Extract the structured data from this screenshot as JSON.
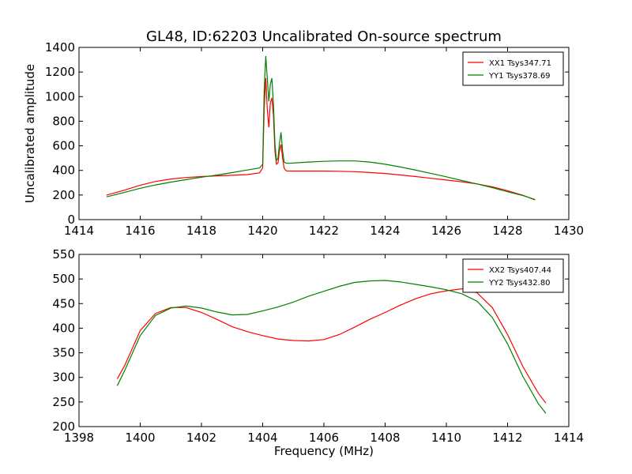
{
  "chart_data": [
    {
      "type": "line",
      "title": "GL48, ID:62203 Uncalibrated On-source spectrum",
      "xlabel": "",
      "ylabel": "Uncalibrated amplitude",
      "xlim": [
        1414,
        1430
      ],
      "ylim": [
        0,
        1400
      ],
      "xticks": [
        "1414",
        "1416",
        "1418",
        "1420",
        "1422",
        "1424",
        "1426",
        "1428",
        "1430"
      ],
      "yticks": [
        "0",
        "200",
        "400",
        "600",
        "800",
        "1000",
        "1200",
        "1400"
      ],
      "legend_position": "top-right",
      "series": [
        {
          "name": "XX1 Tsys347.71",
          "color": "#ff0000",
          "x": [
            1414.9,
            1415.5,
            1416.0,
            1416.5,
            1417.0,
            1417.5,
            1418.0,
            1418.5,
            1419.0,
            1419.5,
            1419.9,
            1420.0,
            1420.05,
            1420.1,
            1420.15,
            1420.2,
            1420.25,
            1420.3,
            1420.35,
            1420.4,
            1420.45,
            1420.5,
            1420.55,
            1420.6,
            1420.65,
            1420.7,
            1420.75,
            1420.8,
            1421.0,
            1421.5,
            1422.0,
            1422.5,
            1423.0,
            1423.5,
            1424.0,
            1424.5,
            1425.0,
            1425.5,
            1426.0,
            1426.5,
            1427.0,
            1427.5,
            1428.0,
            1428.5,
            1428.9
          ],
          "y": [
            200,
            240,
            280,
            310,
            330,
            342,
            350,
            356,
            360,
            366,
            380,
            420,
            900,
            1150,
            900,
            750,
            950,
            990,
            850,
            560,
            450,
            460,
            560,
            610,
            500,
            420,
            400,
            395,
            395,
            395,
            395,
            393,
            390,
            383,
            375,
            363,
            350,
            336,
            322,
            307,
            290,
            267,
            235,
            198,
            160
          ]
        },
        {
          "name": "YY1 Tsys378.69",
          "color": "#008000",
          "x": [
            1414.9,
            1415.5,
            1416.0,
            1416.5,
            1417.0,
            1417.5,
            1418.0,
            1418.5,
            1419.0,
            1419.5,
            1419.9,
            1420.0,
            1420.05,
            1420.1,
            1420.15,
            1420.2,
            1420.25,
            1420.3,
            1420.35,
            1420.4,
            1420.45,
            1420.5,
            1420.55,
            1420.6,
            1420.65,
            1420.7,
            1420.75,
            1420.8,
            1421.0,
            1421.5,
            1422.0,
            1422.5,
            1423.0,
            1423.5,
            1424.0,
            1424.5,
            1425.0,
            1425.5,
            1426.0,
            1426.5,
            1427.0,
            1427.5,
            1428.0,
            1428.5,
            1428.9
          ],
          "y": [
            185,
            222,
            255,
            282,
            305,
            325,
            345,
            362,
            382,
            403,
            420,
            450,
            1050,
            1330,
            1150,
            960,
            1100,
            1150,
            950,
            620,
            480,
            500,
            620,
            710,
            560,
            470,
            460,
            458,
            460,
            468,
            474,
            477,
            477,
            468,
            450,
            428,
            402,
            375,
            348,
            318,
            290,
            260,
            227,
            195,
            163
          ]
        }
      ]
    },
    {
      "type": "line",
      "title": "",
      "xlabel": "Frequency (MHz)",
      "ylabel": "",
      "xlim": [
        1398,
        1414
      ],
      "ylim": [
        200,
        550
      ],
      "xticks": [
        "1398",
        "1400",
        "1402",
        "1404",
        "1406",
        "1408",
        "1410",
        "1412",
        "1414"
      ],
      "yticks": [
        "200",
        "250",
        "300",
        "350",
        "400",
        "450",
        "500",
        "550"
      ],
      "legend_position": "top-right",
      "series": [
        {
          "name": "XX2 Tsys407.44",
          "color": "#ff0000",
          "x": [
            1399.25,
            1399.5,
            1400.0,
            1400.5,
            1401.0,
            1401.5,
            1402.0,
            1402.5,
            1403.0,
            1403.5,
            1404.0,
            1404.5,
            1405.0,
            1405.5,
            1406.0,
            1406.5,
            1407.0,
            1407.5,
            1408.0,
            1408.5,
            1409.0,
            1409.5,
            1410.0,
            1410.5,
            1411.0,
            1411.5,
            1412.0,
            1412.5,
            1413.0,
            1413.25
          ],
          "y": [
            297,
            325,
            395,
            430,
            442,
            442,
            432,
            418,
            403,
            393,
            385,
            378,
            375,
            374,
            377,
            387,
            402,
            418,
            432,
            447,
            460,
            470,
            476,
            480,
            472,
            442,
            387,
            322,
            268,
            248
          ]
        },
        {
          "name": "YY2 Tsys432.80",
          "color": "#008000",
          "x": [
            1399.25,
            1399.5,
            1400.0,
            1400.5,
            1401.0,
            1401.5,
            1402.0,
            1402.5,
            1403.0,
            1403.5,
            1404.0,
            1404.5,
            1405.0,
            1405.5,
            1406.0,
            1406.5,
            1407.0,
            1407.5,
            1408.0,
            1408.5,
            1409.0,
            1409.5,
            1410.0,
            1410.5,
            1411.0,
            1411.5,
            1412.0,
            1412.5,
            1413.0,
            1413.25
          ],
          "y": [
            283,
            315,
            385,
            426,
            441,
            445,
            441,
            433,
            427,
            428,
            435,
            443,
            453,
            465,
            475,
            485,
            493,
            496,
            497,
            494,
            489,
            484,
            478,
            470,
            455,
            422,
            368,
            302,
            247,
            227
          ]
        }
      ]
    }
  ]
}
